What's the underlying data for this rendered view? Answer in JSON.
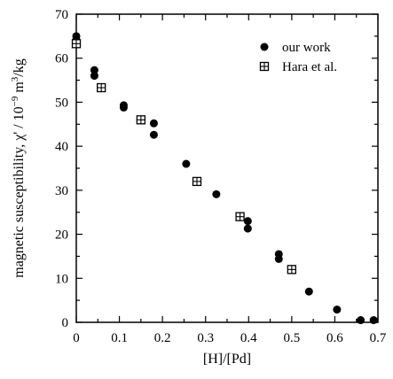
{
  "chart_data": {
    "type": "scatter",
    "xlabel": "[H]/[Pd]",
    "ylabel_html": "magnetic susceptibility, χ' / 10⁻⁹ m³/kg",
    "ylabel_parts": {
      "main": "magnetic susceptibility, χ' / 10",
      "exp": "−9",
      "mid": " m",
      "exp2": "3",
      "end": "/kg"
    },
    "xlim": [
      0,
      0.7
    ],
    "ylim": [
      0,
      70
    ],
    "x_ticks": [
      "0",
      "0.1",
      "0.2",
      "0.3",
      "0.4",
      "0.5",
      "0.6",
      "0.7"
    ],
    "x_tick_values": [
      0,
      0.1,
      0.2,
      0.3,
      0.4,
      0.5,
      0.6,
      0.7
    ],
    "y_ticks": [
      "0",
      "10",
      "20",
      "30",
      "40",
      "50",
      "60",
      "70"
    ],
    "y_tick_values": [
      0,
      10,
      20,
      30,
      40,
      50,
      60,
      70
    ],
    "legend_position": "top-right",
    "series": [
      {
        "name": "our work",
        "marker": "filled-circle",
        "color": "#000000",
        "points": [
          {
            "x": 0.0,
            "y": 65.0
          },
          {
            "x": 0.0,
            "y": 64.2
          },
          {
            "x": 0.042,
            "y": 57.3
          },
          {
            "x": 0.042,
            "y": 56.0
          },
          {
            "x": 0.11,
            "y": 49.3
          },
          {
            "x": 0.11,
            "y": 48.8
          },
          {
            "x": 0.18,
            "y": 45.2
          },
          {
            "x": 0.18,
            "y": 42.6
          },
          {
            "x": 0.255,
            "y": 36.0
          },
          {
            "x": 0.325,
            "y": 29.1
          },
          {
            "x": 0.398,
            "y": 23.0
          },
          {
            "x": 0.398,
            "y": 21.3
          },
          {
            "x": 0.47,
            "y": 15.5
          },
          {
            "x": 0.47,
            "y": 14.4
          },
          {
            "x": 0.54,
            "y": 7.0
          },
          {
            "x": 0.605,
            "y": 2.9
          },
          {
            "x": 0.66,
            "y": 0.5
          },
          {
            "x": 0.69,
            "y": 0.5
          }
        ]
      },
      {
        "name": "Hara et al.",
        "marker": "crossed-square",
        "color": "#000000",
        "points": [
          {
            "x": 0.0,
            "y": 63.3
          },
          {
            "x": 0.058,
            "y": 53.3
          },
          {
            "x": 0.15,
            "y": 46.0
          },
          {
            "x": 0.28,
            "y": 32.0
          },
          {
            "x": 0.38,
            "y": 24.0
          },
          {
            "x": 0.5,
            "y": 12.0
          }
        ]
      }
    ]
  }
}
